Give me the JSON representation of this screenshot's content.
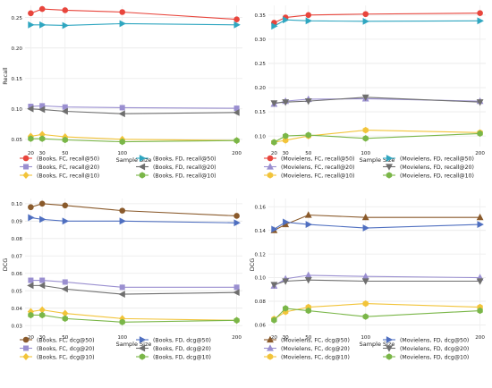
{
  "chart_data": [
    {
      "type": "line",
      "panel": "books-recall",
      "xlabel": "Sample Size",
      "ylabel": "Recall",
      "x": [
        20,
        30,
        50,
        100,
        200
      ],
      "x_ticks": [
        "20",
        "30",
        "50",
        "100",
        "200"
      ],
      "y_ticks": [
        "0.05",
        "0.10",
        "0.15",
        "0.20",
        "0.25"
      ],
      "ylim": [
        0.038,
        0.27
      ],
      "grid": true,
      "legend_position": "bottom",
      "series": [
        {
          "name": "(Books, FC, recall@50)",
          "color": "#e8453c",
          "marker": "circle",
          "values": [
            0.257,
            0.264,
            0.262,
            0.259,
            0.247
          ]
        },
        {
          "name": "(Books, FD, recall@50)",
          "color": "#2fa6c0",
          "marker": "tri-right",
          "values": [
            0.238,
            0.238,
            0.237,
            0.24,
            0.238
          ]
        },
        {
          "name": "(Books, FC, recall@20)",
          "color": "#9a8fd0",
          "marker": "square",
          "values": [
            0.104,
            0.105,
            0.103,
            0.102,
            0.101
          ]
        },
        {
          "name": "(Books, FD, recall@20)",
          "color": "#6e6e6e",
          "marker": "tri-left",
          "values": [
            0.1,
            0.099,
            0.096,
            0.092,
            0.094
          ]
        },
        {
          "name": "(Books, FC, recall@10)",
          "color": "#f2c43a",
          "marker": "diamond",
          "values": [
            0.055,
            0.058,
            0.054,
            0.05,
            0.048
          ]
        },
        {
          "name": "(Books, FD, recall@10)",
          "color": "#7ab648",
          "marker": "hexagon",
          "values": [
            0.051,
            0.051,
            0.049,
            0.046,
            0.048
          ]
        }
      ]
    },
    {
      "type": "line",
      "panel": "movielens-recall",
      "xlabel": "Sample Size",
      "ylabel": "",
      "x": [
        20,
        30,
        50,
        100,
        200
      ],
      "x_ticks": [
        "20",
        "30",
        "50",
        "100",
        "200"
      ],
      "y_ticks": [
        "0.10",
        "0.15",
        "0.20",
        "0.25",
        "0.30",
        "0.35"
      ],
      "ylim": [
        0.078,
        0.37
      ],
      "grid": true,
      "legend_position": "bottom",
      "series": [
        {
          "name": "(Movielens, FC, recall@50)",
          "color": "#e8453c",
          "marker": "circle",
          "values": [
            0.334,
            0.345,
            0.35,
            0.352,
            0.354
          ]
        },
        {
          "name": "(Movielens, FD, recall@50)",
          "color": "#2fa6c0",
          "marker": "tri-right",
          "values": [
            0.327,
            0.34,
            0.338,
            0.337,
            0.338
          ]
        },
        {
          "name": "(Movielens, FC, recall@20)",
          "color": "#9a8fd0",
          "marker": "tri-up",
          "values": [
            0.166,
            0.172,
            0.176,
            0.177,
            0.172
          ]
        },
        {
          "name": "(Movielens, FD, recall@20)",
          "color": "#6e6e6e",
          "marker": "tri-down",
          "values": [
            0.168,
            0.17,
            0.172,
            0.18,
            0.17
          ]
        },
        {
          "name": "(Movielens, FC, recall@10)",
          "color": "#f2c43a",
          "marker": "hexagon",
          "values": [
            0.087,
            0.091,
            0.1,
            0.112,
            0.107
          ]
        },
        {
          "name": "(Movielens, FD, recall@10)",
          "color": "#7ab648",
          "marker": "hexagon",
          "values": [
            0.087,
            0.1,
            0.102,
            0.095,
            0.105
          ]
        }
      ]
    },
    {
      "type": "line",
      "panel": "books-dcg",
      "xlabel": "Sample Size",
      "ylabel": "DCG",
      "x": [
        20,
        30,
        50,
        100,
        200
      ],
      "x_ticks": [
        "20",
        "30",
        "50",
        "100",
        "200"
      ],
      "y_ticks": [
        "0.03",
        "0.04",
        "0.05",
        "0.06",
        "0.07",
        "0.08",
        "0.09",
        "0.10"
      ],
      "ylim": [
        0.027,
        0.103
      ],
      "grid": true,
      "legend_position": "bottom",
      "series": [
        {
          "name": "(Books, FC, dcg@50)",
          "color": "#8a5a2b",
          "marker": "circle",
          "values": [
            0.098,
            0.1,
            0.099,
            0.096,
            0.093
          ]
        },
        {
          "name": "(Books, FD, dcg@50)",
          "color": "#4f6fc0",
          "marker": "tri-right",
          "values": [
            0.092,
            0.091,
            0.09,
            0.09,
            0.089
          ]
        },
        {
          "name": "(Books, FC, dcg@20)",
          "color": "#9a8fd0",
          "marker": "square",
          "values": [
            0.056,
            0.056,
            0.055,
            0.052,
            0.052
          ]
        },
        {
          "name": "(Books, FD, dcg@20)",
          "color": "#6e6e6e",
          "marker": "tri-left",
          "values": [
            0.053,
            0.053,
            0.051,
            0.048,
            0.049
          ]
        },
        {
          "name": "(Books, FC, dcg@10)",
          "color": "#f2c43a",
          "marker": "diamond",
          "values": [
            0.038,
            0.039,
            0.037,
            0.034,
            0.033
          ]
        },
        {
          "name": "(Books, FD, dcg@10)",
          "color": "#7ab648",
          "marker": "hexagon",
          "values": [
            0.036,
            0.036,
            0.034,
            0.032,
            0.033
          ]
        }
      ]
    },
    {
      "type": "line",
      "panel": "movielens-dcg",
      "xlabel": "Sample Size",
      "ylabel": "DCG",
      "x": [
        20,
        30,
        50,
        100,
        200
      ],
      "x_ticks": [
        "20",
        "30",
        "50",
        "100",
        "200"
      ],
      "y_ticks": [
        "0.06",
        "0.08",
        "0.10",
        "0.12",
        "0.14",
        "0.16"
      ],
      "ylim": [
        0.055,
        0.167
      ],
      "grid": true,
      "legend_position": "bottom",
      "series": [
        {
          "name": "(Movielens, FC, dcg@50)",
          "color": "#8a5a2b",
          "marker": "tri-up",
          "values": [
            0.14,
            0.145,
            0.153,
            0.151,
            0.151
          ]
        },
        {
          "name": "(Movielens, FD, dcg@50)",
          "color": "#4f6fc0",
          "marker": "tri-right",
          "values": [
            0.141,
            0.147,
            0.145,
            0.142,
            0.145
          ]
        },
        {
          "name": "(Movielens, FC, dcg@20)",
          "color": "#9a8fd0",
          "marker": "tri-up",
          "values": [
            0.093,
            0.099,
            0.102,
            0.101,
            0.1
          ]
        },
        {
          "name": "(Movielens, FD, dcg@20)",
          "color": "#6e6e6e",
          "marker": "tri-down",
          "values": [
            0.094,
            0.097,
            0.098,
            0.097,
            0.097
          ]
        },
        {
          "name": "(Movielens, FC, dcg@10)",
          "color": "#f2c43a",
          "marker": "hexagon",
          "values": [
            0.065,
            0.071,
            0.075,
            0.078,
            0.075
          ]
        },
        {
          "name": "(Movielens, FD, dcg@10)",
          "color": "#7ab648",
          "marker": "hexagon",
          "values": [
            0.064,
            0.074,
            0.072,
            0.067,
            0.072
          ]
        }
      ]
    }
  ]
}
